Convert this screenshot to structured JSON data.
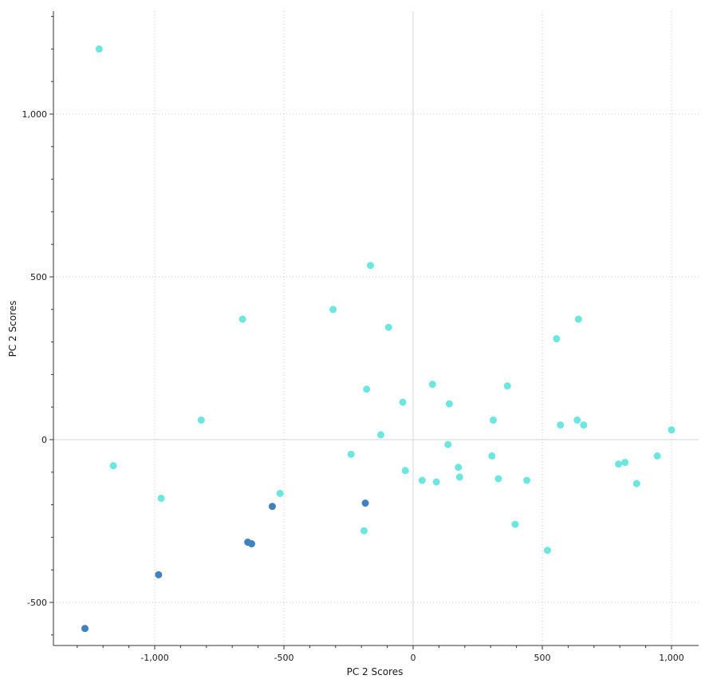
{
  "chart_data": {
    "type": "scatter",
    "title": "",
    "xlabel": "PC 2 Scores",
    "ylabel": "PC 2 Scores",
    "xlim": [
      -1400,
      1100
    ],
    "ylim": [
      -630,
      1320
    ],
    "x_ticks": [
      -1000,
      -500,
      0,
      500,
      1000
    ],
    "x_tick_labels": [
      "-1,000",
      "-500",
      "0",
      "500",
      "1,000"
    ],
    "y_ticks": [
      -500,
      0,
      500,
      1000
    ],
    "y_tick_labels": [
      "-500",
      "0",
      "500",
      "1,000"
    ],
    "grid": true,
    "zero_lines": true,
    "colors": {
      "group_a": "#6de6e0",
      "group_b": "#3f82bf",
      "grid": "#c8c8c8",
      "zero_line": "#d4d4d4",
      "axis": "#333333"
    },
    "series": [
      {
        "color_key": "group_a",
        "points": [
          [
            -1215,
            1200
          ],
          [
            -1160,
            -80
          ],
          [
            -975,
            -180
          ],
          [
            -820,
            60
          ],
          [
            -660,
            370
          ],
          [
            -515,
            -165
          ],
          [
            -310,
            400
          ],
          [
            -240,
            -45
          ],
          [
            -190,
            -280
          ],
          [
            -180,
            155
          ],
          [
            -165,
            535
          ],
          [
            -125,
            15
          ],
          [
            -95,
            345
          ],
          [
            -40,
            115
          ],
          [
            -30,
            -95
          ],
          [
            35,
            -125
          ],
          [
            75,
            170
          ],
          [
            90,
            -130
          ],
          [
            135,
            -15
          ],
          [
            140,
            110
          ],
          [
            175,
            -85
          ],
          [
            180,
            -115
          ],
          [
            305,
            -50
          ],
          [
            310,
            60
          ],
          [
            330,
            -120
          ],
          [
            365,
            165
          ],
          [
            395,
            -260
          ],
          [
            440,
            -125
          ],
          [
            520,
            -340
          ],
          [
            555,
            310
          ],
          [
            570,
            45
          ],
          [
            635,
            60
          ],
          [
            640,
            370
          ],
          [
            660,
            45
          ],
          [
            795,
            -75
          ],
          [
            820,
            -70
          ],
          [
            865,
            -135
          ],
          [
            945,
            -50
          ],
          [
            1000,
            30
          ]
        ]
      },
      {
        "color_key": "group_b",
        "points": [
          [
            -1270,
            -580
          ],
          [
            -985,
            -415
          ],
          [
            -545,
            -205
          ],
          [
            -640,
            -315
          ],
          [
            -625,
            -320
          ],
          [
            -185,
            -195
          ]
        ]
      }
    ]
  }
}
